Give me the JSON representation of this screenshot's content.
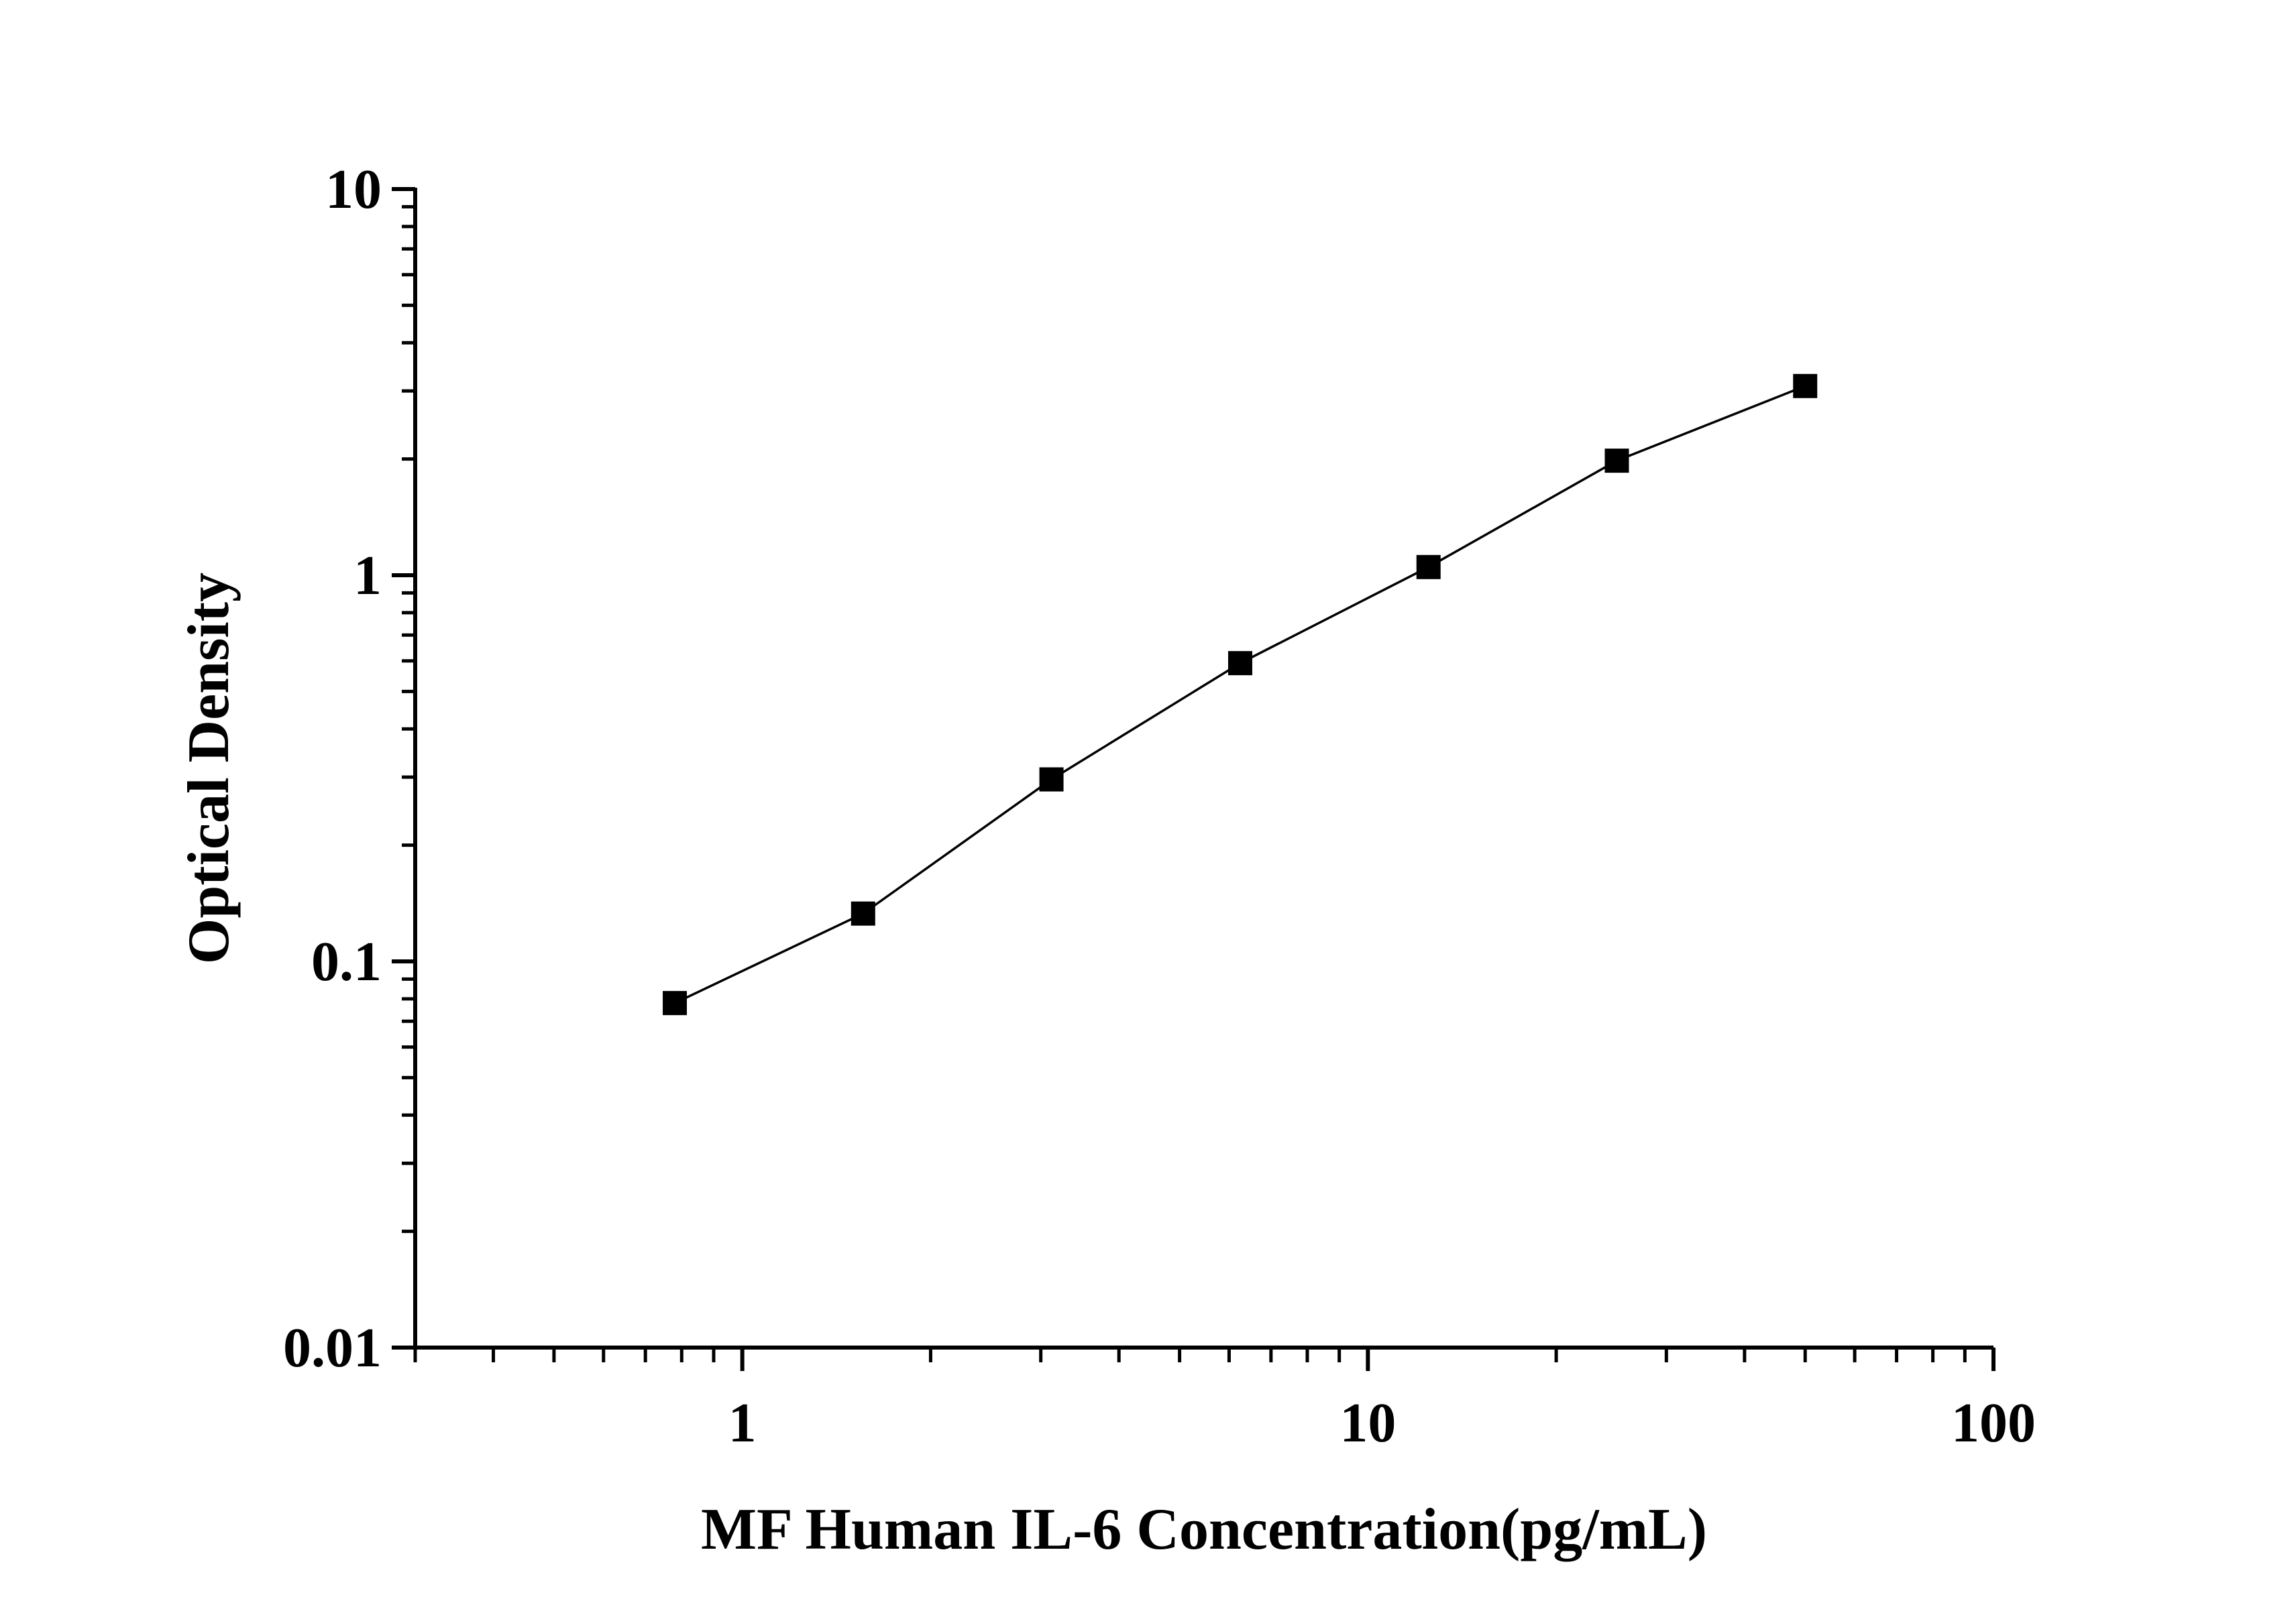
{
  "chart_data": {
    "type": "scatter",
    "title": "",
    "xlabel": "MF Human IL-6 Concentration(pg/mL)",
    "ylabel": "Optical Density",
    "xscale": "log",
    "yscale": "log",
    "xlim": [
      0.3,
      100
    ],
    "ylim": [
      0.01,
      10
    ],
    "x_tick_labels": [
      "1",
      "10",
      "100"
    ],
    "x_ticks": [
      1,
      10,
      100
    ],
    "y_tick_labels": [
      "0.01",
      "0.1",
      "1",
      "10"
    ],
    "y_ticks": [
      0.01,
      0.1,
      1,
      10
    ],
    "grid": false,
    "legend": "none",
    "series": [
      {
        "marker": "square",
        "line": "connected",
        "color": "#000000",
        "x": [
          0.78,
          1.56,
          3.12,
          6.25,
          12.5,
          25,
          50
        ],
        "y": [
          0.078,
          0.133,
          0.296,
          0.592,
          1.05,
          1.98,
          3.09
        ]
      }
    ]
  }
}
